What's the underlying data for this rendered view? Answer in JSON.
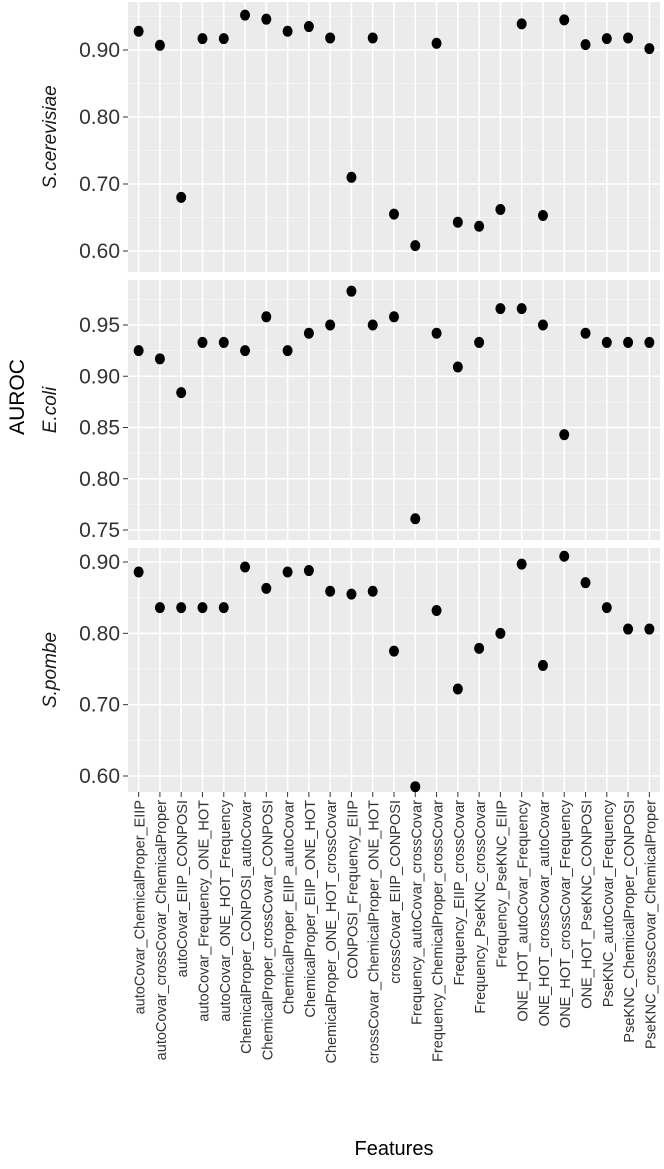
{
  "chart_data": {
    "type": "scatter",
    "xlabel": "Features",
    "ylabel": "AUROC",
    "categories": [
      "autoCovar_ChemicalProper_EIIP",
      "autoCovar_crossCovar_ChemicalProper",
      "autoCovar_EIIP_CONPOSI",
      "autoCovar_Frequency_ONE_HOT",
      "autoCovar_ONE_HOT_Frequency",
      "ChemicalProper_CONPOSI_autoCovar",
      "ChemicalProper_crossCovar_CONPOSI",
      "ChemicalProper_EIIP_autoCovar",
      "ChemicalProper_EIIP_ONE_HOT",
      "ChemicalProper_ONE_HOT_crossCovar",
      "CONPOSI_Frequency_EIIP",
      "crossCovar_ChemicalProper_ONE_HOT",
      "crossCovar_EIIP_CONPOSI",
      "Frequency_autoCovar_crossCovar",
      "Frequency_ChemicalProper_crossCovar",
      "Frequency_EIIP_crossCovar",
      "Frequency_PseKNC_crossCovar",
      "Frequency_PseKNC_EIIP",
      "ONE_HOT_autoCovar_Frequency",
      "ONE_HOT_crossCovar_autoCovar",
      "ONE_HOT_crossCovar_Frequency",
      "ONE_HOT_PseKNC_CONPOSI",
      "PseKNC_autoCovar_Frequency",
      "PseKNC_ChemicalProper_CONPOSI",
      "PseKNC_crossCovar_ChemicalProper"
    ],
    "panels": [
      {
        "name": "S.cerevisiae",
        "ticks": [
          "0.60",
          "0.70",
          "0.80",
          "0.90"
        ],
        "ylim": [
          0.598,
          0.968
        ],
        "values": [
          0.928,
          0.907,
          0.68,
          0.917,
          0.917,
          0.952,
          0.946,
          0.928,
          0.935,
          0.918,
          0.71,
          0.918,
          0.655,
          0.608,
          0.91,
          0.643,
          0.637,
          0.662,
          0.939,
          0.653,
          0.945,
          0.908,
          0.917,
          0.918,
          0.902
        ]
      },
      {
        "name": "E.coli",
        "ticks": [
          "0.75",
          "0.80",
          "0.85",
          "0.90",
          "0.95"
        ],
        "ylim": [
          0.745,
          0.995
        ],
        "values": [
          0.925,
          0.917,
          0.884,
          0.933,
          0.933,
          0.925,
          0.958,
          0.925,
          0.942,
          0.95,
          0.983,
          0.95,
          0.958,
          0.761,
          0.942,
          0.909,
          0.933,
          0.966,
          0.966,
          0.95,
          0.843,
          0.942,
          0.933,
          0.933,
          0.933
        ]
      },
      {
        "name": "S.pombe",
        "ticks": [
          "0.60",
          "0.70",
          "0.80",
          "0.90"
        ],
        "ylim": [
          0.575,
          0.92
        ],
        "values": [
          0.886,
          0.836,
          0.836,
          0.836,
          0.836,
          0.893,
          0.863,
          0.886,
          0.888,
          0.859,
          0.855,
          0.859,
          0.775,
          0.585,
          0.832,
          0.722,
          0.779,
          0.8,
          0.897,
          0.755,
          0.908,
          0.871,
          0.836,
          0.806,
          0.806
        ]
      }
    ],
    "grid": true,
    "legend": "none"
  }
}
